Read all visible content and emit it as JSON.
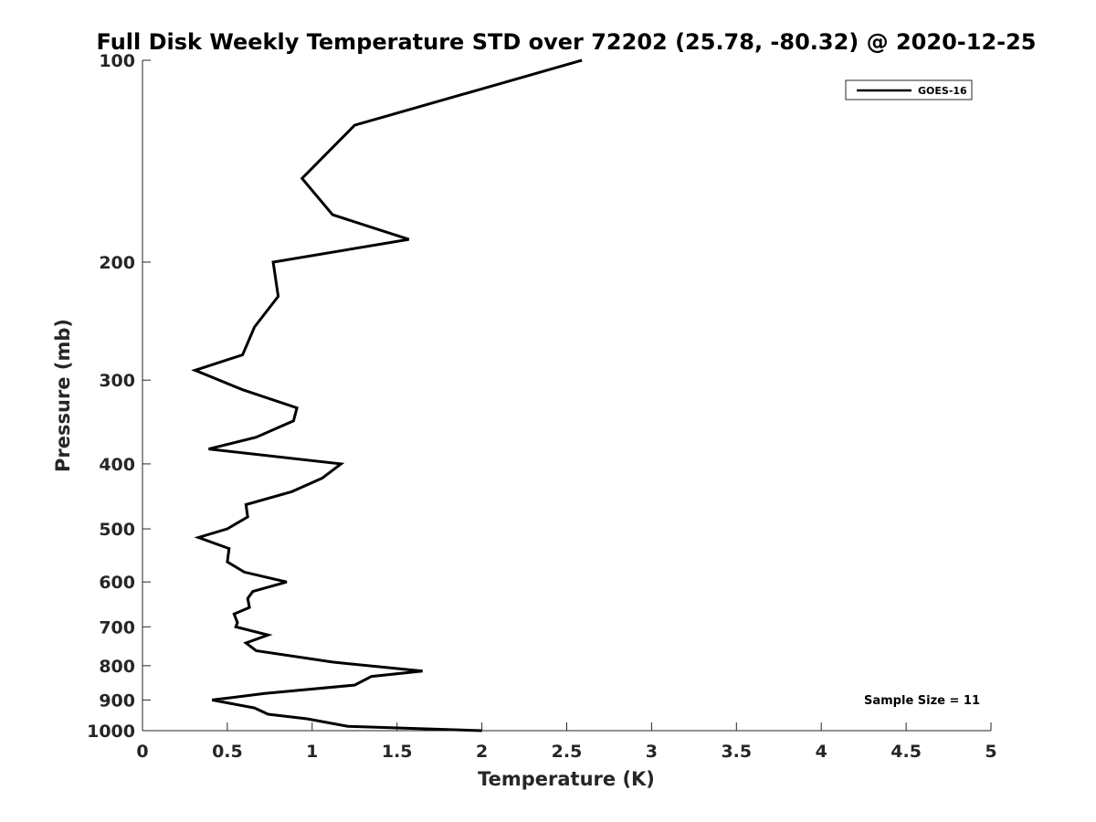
{
  "chart_data": {
    "type": "line",
    "title": "Full Disk Weekly Temperature STD over 72202 (25.78, -80.32) @ 2020-12-25",
    "xlabel": "Temperature (K)",
    "ylabel": "Pressure (mb)",
    "xlim": [
      0,
      5
    ],
    "ylim": [
      100,
      1000
    ],
    "y_scale": "log",
    "y_reversed": true,
    "x_ticks": [
      "0",
      "0.5",
      "1",
      "1.5",
      "2",
      "2.5",
      "3",
      "3.5",
      "4",
      "4.5",
      "5"
    ],
    "x_tick_values": [
      0,
      0.5,
      1,
      1.5,
      2,
      2.5,
      3,
      3.5,
      4,
      4.5,
      5
    ],
    "y_ticks": [
      "100",
      "200",
      "300",
      "400",
      "500",
      "600",
      "700",
      "800",
      "900",
      "1000"
    ],
    "y_tick_values": [
      100,
      200,
      300,
      400,
      500,
      600,
      700,
      800,
      900,
      1000
    ],
    "grid": false,
    "legend_position": "top-right",
    "series": [
      {
        "name": "GOES-16",
        "color": "#000000",
        "points": [
          [
            2.59,
            100
          ],
          [
            1.25,
            125
          ],
          [
            0.94,
            150
          ],
          [
            1.12,
            170
          ],
          [
            1.57,
            185
          ],
          [
            0.77,
            200
          ],
          [
            0.8,
            225
          ],
          [
            0.66,
            250
          ],
          [
            0.59,
            275
          ],
          [
            0.31,
            290
          ],
          [
            0.59,
            310
          ],
          [
            0.91,
            330
          ],
          [
            0.89,
            345
          ],
          [
            0.67,
            365
          ],
          [
            0.39,
            380
          ],
          [
            1.17,
            400
          ],
          [
            1.06,
            420
          ],
          [
            0.88,
            440
          ],
          [
            0.61,
            460
          ],
          [
            0.62,
            480
          ],
          [
            0.5,
            500
          ],
          [
            0.33,
            515
          ],
          [
            0.51,
            535
          ],
          [
            0.5,
            560
          ],
          [
            0.6,
            580
          ],
          [
            0.85,
            600
          ],
          [
            0.65,
            620
          ],
          [
            0.62,
            635
          ],
          [
            0.63,
            655
          ],
          [
            0.54,
            670
          ],
          [
            0.56,
            690
          ],
          [
            0.55,
            700
          ],
          [
            0.74,
            720
          ],
          [
            0.61,
            740
          ],
          [
            0.67,
            760
          ],
          [
            1.12,
            790
          ],
          [
            1.65,
            815
          ],
          [
            1.35,
            830
          ],
          [
            1.25,
            855
          ],
          [
            0.72,
            880
          ],
          [
            0.41,
            900
          ],
          [
            0.66,
            925
          ],
          [
            0.74,
            945
          ],
          [
            0.97,
            960
          ],
          [
            1.21,
            985
          ],
          [
            2.0,
            1000
          ]
        ]
      }
    ],
    "annotations": [
      "Sample Size = 11"
    ]
  }
}
